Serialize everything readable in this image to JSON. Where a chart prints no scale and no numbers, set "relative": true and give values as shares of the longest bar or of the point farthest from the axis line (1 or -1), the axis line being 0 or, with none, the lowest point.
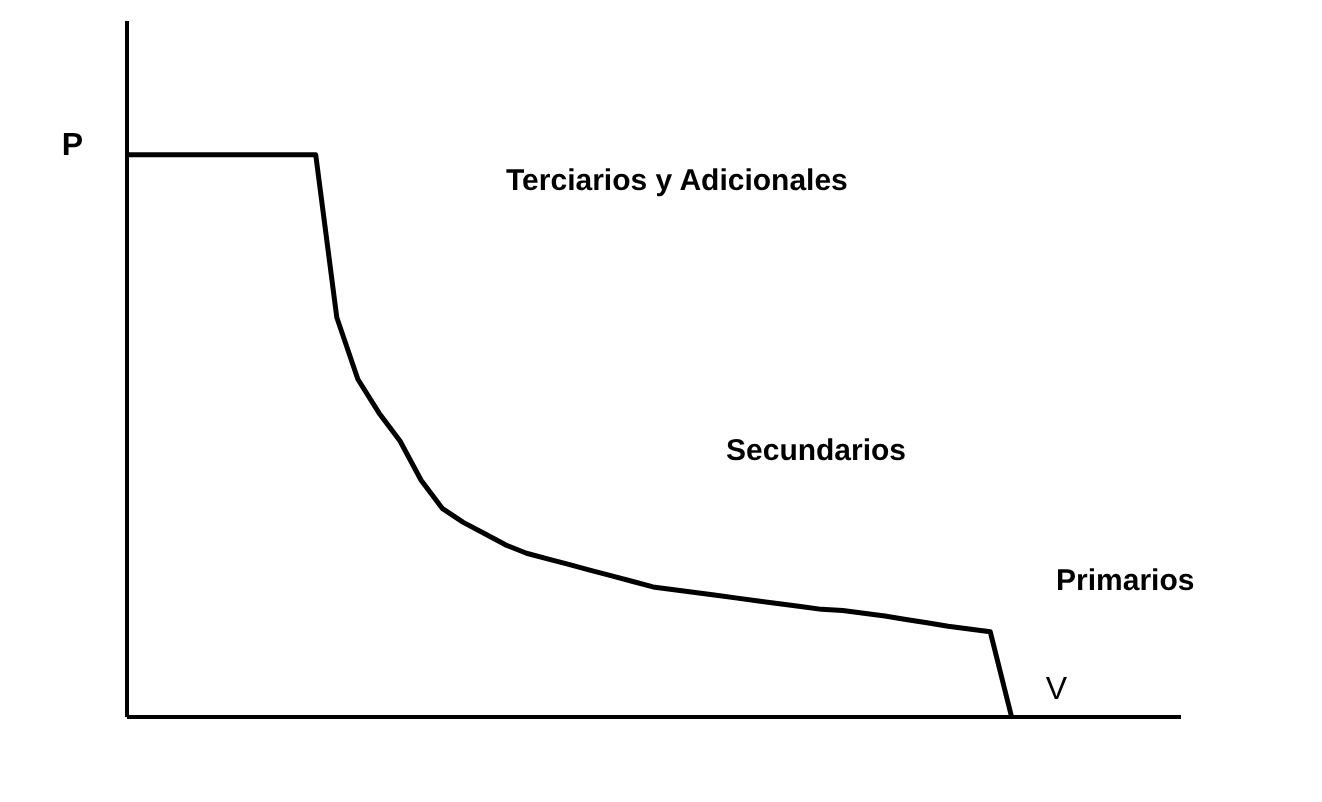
{
  "chart_data": {
    "type": "line",
    "relative": true,
    "xlabel": "V",
    "ylabel": "P",
    "tick_labels": false,
    "grid": false,
    "marker": "none",
    "line_style": "solid",
    "categories": [
      null,
      null,
      null,
      null,
      null,
      null,
      null,
      null,
      null,
      null,
      null,
      null,
      null,
      null,
      null,
      null,
      null,
      null,
      null,
      null,
      null,
      null,
      null,
      null,
      null,
      null,
      null,
      null,
      null,
      null,
      null,
      null,
      null,
      null,
      null,
      null,
      null,
      null,
      null,
      null,
      null,
      null,
      null,
      null,
      null,
      null,
      null,
      null,
      null,
      null,
      null
    ],
    "series": [
      {
        "color": "#000000",
        "values": [
          1,
          1,
          1,
          1,
          1,
          1,
          1,
          1,
          1,
          1,
          0.71,
          0.6,
          0.54,
          0.49,
          0.42,
          0.37,
          0.345,
          0.325,
          0.305,
          0.29,
          0.28,
          0.27,
          0.26,
          0.25,
          0.24,
          0.23,
          0.225,
          0.22,
          0.215,
          0.21,
          0.205,
          0.2,
          0.195,
          0.19,
          0.188,
          0.183,
          0.178,
          0.172,
          0.166,
          0.16,
          0.155,
          0.15,
          0,
          null,
          null,
          null,
          null,
          null,
          null,
          null,
          null
        ]
      }
    ],
    "annotations": [
      "Terciarios y Adicionales",
      "Secundarios",
      "Primarios"
    ]
  }
}
